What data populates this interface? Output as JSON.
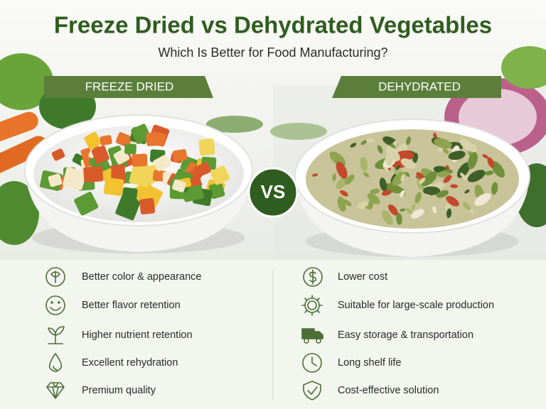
{
  "title": "Freeze Dried vs Dehydrated Vegetables",
  "subtitle": "Which Is Better for Food Manufacturing?",
  "badge": "VS",
  "columns": [
    {
      "label": "FREEZE DRIED",
      "features": [
        "Better color & appearance",
        "Better flavor retention",
        "Higher nutrient retention",
        "Excellent rehydration",
        "Premium quality"
      ]
    },
    {
      "label": "DEHYDRATED",
      "features": [
        "Lower cost",
        "Suitable for large-scale production",
        "Easy storage & transportation",
        "Long shelf life",
        "Cost-effective solution"
      ]
    }
  ]
}
